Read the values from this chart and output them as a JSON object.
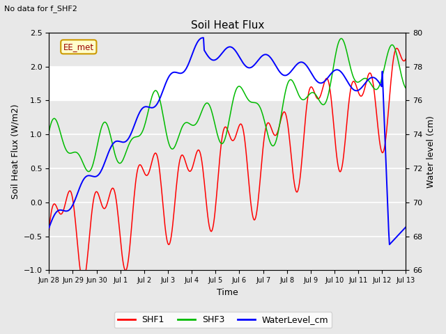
{
  "title": "Soil Heat Flux",
  "subtitle": "No data for f_SHF2",
  "xlabel": "Time",
  "ylabel_left": "Soil Heat Flux (W/m2)",
  "ylabel_right": "Water level (cm)",
  "annotation": "EE_met",
  "ylim_left": [
    -1.0,
    2.5
  ],
  "ylim_right": [
    66,
    80
  ],
  "background_color": "#e8e8e8",
  "shf1_color": "#ff0000",
  "shf3_color": "#00bb00",
  "water_color": "#0000ff",
  "legend_labels": [
    "SHF1",
    "SHF3",
    "WaterLevel_cm"
  ],
  "xtick_labels": [
    "Jun 28",
    "Jun 29",
    "Jun 30",
    "Jul 1",
    "Jul 2",
    "Jul 3",
    "Jul 4",
    "Jul 5",
    "Jul 6",
    "Jul 7",
    "Jul 8",
    "Jul 9",
    "Jul 10",
    "Jul 11",
    "Jul 12",
    "Jul 13"
  ],
  "shaded_band": [
    1.5,
    2.0
  ],
  "figsize": [
    6.4,
    4.8
  ],
  "dpi": 100
}
